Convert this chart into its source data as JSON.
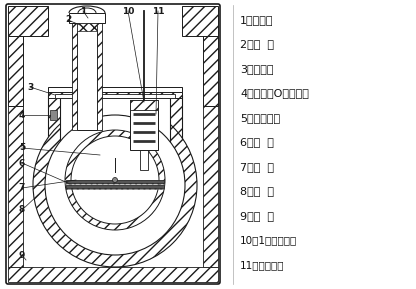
{
  "bg_color": "#ffffff",
  "line_color": "#2a2a2a",
  "labels": [
    "1、进气和",
    "2、滤  网",
    "3、挡油板",
    "4、进气和O形密封圈",
    "5、旋片弹簧",
    "6、旋  片",
    "7、转  子",
    "8、泵  身",
    "9、油  筱",
    "10、1号真空泵油",
    "11、排气阀片"
  ],
  "fig_width": 4.16,
  "fig_height": 2.89,
  "dpi": 100
}
